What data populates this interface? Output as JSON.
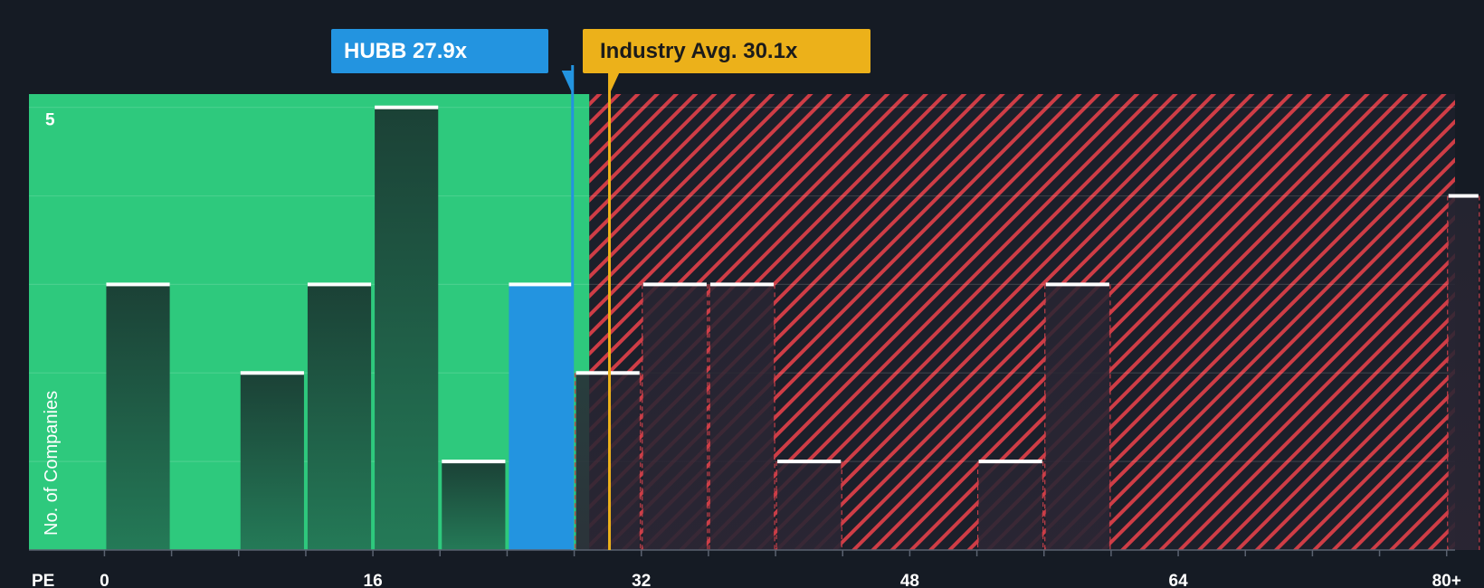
{
  "chart_data": {
    "type": "bar",
    "title": "",
    "xlabel": "PE",
    "ylabel": "No. of Companies",
    "xlim": [
      -4.5,
      80.5
    ],
    "ylim": [
      0,
      5.15
    ],
    "x_ticks": [
      {
        "value": 0,
        "label": "0"
      },
      {
        "value": 16,
        "label": "16"
      },
      {
        "value": 32,
        "label": "32"
      },
      {
        "value": 48,
        "label": "48"
      },
      {
        "value": 64,
        "label": "64"
      },
      {
        "value": 80,
        "label": "80+"
      }
    ],
    "y_ticks": [
      {
        "value": 5,
        "label": "5"
      }
    ],
    "gridlines": [
      1,
      2,
      3,
      4,
      5
    ],
    "bins": [
      {
        "start": 0,
        "end": 4,
        "count": 3
      },
      {
        "start": 4,
        "end": 8,
        "count": 0
      },
      {
        "start": 8,
        "end": 12,
        "count": 2
      },
      {
        "start": 12,
        "end": 16,
        "count": 3
      },
      {
        "start": 16,
        "end": 20,
        "count": 5
      },
      {
        "start": 20,
        "end": 24,
        "count": 1
      },
      {
        "start": 24,
        "end": 28,
        "count": 3,
        "highlight": true
      },
      {
        "start": 28,
        "end": 32,
        "count": 2
      },
      {
        "start": 32,
        "end": 36,
        "count": 3
      },
      {
        "start": 36,
        "end": 40,
        "count": 3
      },
      {
        "start": 40,
        "end": 44,
        "count": 1
      },
      {
        "start": 44,
        "end": 48,
        "count": 0
      },
      {
        "start": 48,
        "end": 52,
        "count": 0
      },
      {
        "start": 52,
        "end": 56,
        "count": 1
      },
      {
        "start": 56,
        "end": 60,
        "count": 3
      },
      {
        "start": 60,
        "end": 64,
        "count": 0
      },
      {
        "start": 64,
        "end": 68,
        "count": 0
      },
      {
        "start": 68,
        "end": 72,
        "count": 0
      },
      {
        "start": 72,
        "end": 76,
        "count": 0
      },
      {
        "start": 76,
        "end": 80,
        "count": 0
      },
      {
        "start": 80,
        "end": 82,
        "count": 4
      }
    ],
    "fair_zone_end": 28.9,
    "markers": {
      "company": {
        "ticker": "HUBB",
        "value": 27.9,
        "label": "HUBB 27.9x"
      },
      "industry": {
        "value": 30.1,
        "label": "Industry Avg. 30.1x"
      }
    }
  },
  "colors": {
    "background": "#151b24",
    "fair_zone": "#2ec97d",
    "overvalued_zone": "#7c2630",
    "hatch": "#cf3d46",
    "bar_dark": "#1d4a3c",
    "bar_company": "#2394e0",
    "bar_over": "#2a2230",
    "cap": "#ffffff",
    "company_marker": "#2394e0",
    "industry_marker": "#ecb11a"
  }
}
